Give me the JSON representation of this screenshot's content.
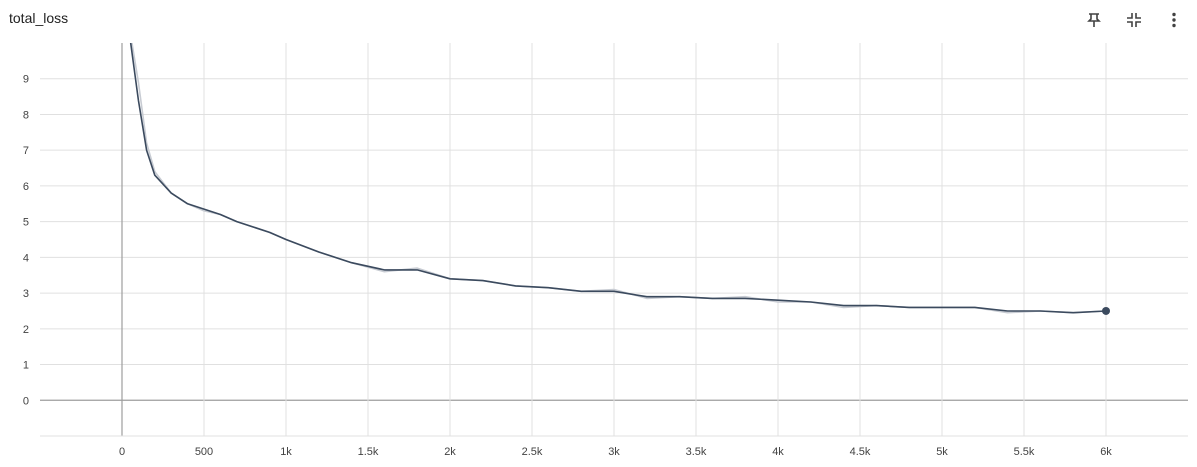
{
  "header": {
    "title": "total_loss"
  },
  "toolbar": {
    "icons": [
      "pin-icon",
      "fit-domain-icon",
      "more-vert-icon"
    ]
  },
  "colors": {
    "smoothed": "#3b4a5e",
    "raw": "#c8ccd3",
    "grid": "#e0e0e0",
    "axis": "#9e9e9e",
    "tick_text": "#424242"
  },
  "chart_data": {
    "type": "line",
    "title": "",
    "xlabel": "",
    "ylabel": "",
    "xlim": [
      -500,
      6500
    ],
    "ylim": [
      -1,
      10
    ],
    "xticks": [
      0,
      500,
      1000,
      1500,
      2000,
      2500,
      3000,
      3500,
      4000,
      4500,
      5000,
      5500,
      6000
    ],
    "xtick_labels": [
      "0",
      "500",
      "1k",
      "1.5k",
      "2k",
      "2.5k",
      "3k",
      "3.5k",
      "4k",
      "4.5k",
      "5k",
      "5.5k",
      "6k"
    ],
    "yticks": [
      0,
      1,
      2,
      3,
      4,
      5,
      6,
      7,
      8,
      9
    ],
    "ytick_labels": [
      "0",
      "1",
      "2",
      "3",
      "4",
      "5",
      "6",
      "7",
      "8",
      "9"
    ],
    "grid": true,
    "series": [
      {
        "role": "raw",
        "x": [
          0,
          50,
          100,
          150,
          200,
          300,
          400,
          500,
          600,
          700,
          800,
          900,
          1000,
          1200,
          1400,
          1600,
          1800,
          2000,
          2200,
          2400,
          2600,
          2800,
          3000,
          3200,
          3400,
          3600,
          3800,
          4000,
          4200,
          4400,
          4600,
          4800,
          5000,
          5200,
          5400,
          5600,
          5800,
          6000
        ],
        "y": [
          10.6,
          10.3,
          8.9,
          7.2,
          6.4,
          5.8,
          5.5,
          5.3,
          5.2,
          5.0,
          4.85,
          4.7,
          4.5,
          4.15,
          3.85,
          3.6,
          3.7,
          3.4,
          3.35,
          3.2,
          3.15,
          3.05,
          3.1,
          2.85,
          2.9,
          2.85,
          2.9,
          2.75,
          2.75,
          2.6,
          2.65,
          2.6,
          2.6,
          2.6,
          2.45,
          2.5,
          2.45,
          2.5
        ]
      },
      {
        "role": "smoothed",
        "x": [
          0,
          50,
          100,
          150,
          200,
          300,
          400,
          500,
          600,
          700,
          800,
          900,
          1000,
          1200,
          1400,
          1600,
          1800,
          2000,
          2200,
          2400,
          2600,
          2800,
          3000,
          3200,
          3400,
          3600,
          3800,
          4000,
          4200,
          4400,
          4600,
          4800,
          5000,
          5200,
          5400,
          5600,
          5800,
          6000
        ],
        "y": [
          10.2,
          10.1,
          8.4,
          7.0,
          6.3,
          5.8,
          5.5,
          5.35,
          5.2,
          5.0,
          4.85,
          4.7,
          4.5,
          4.15,
          3.85,
          3.65,
          3.65,
          3.4,
          3.35,
          3.2,
          3.15,
          3.05,
          3.05,
          2.9,
          2.9,
          2.85,
          2.85,
          2.8,
          2.75,
          2.65,
          2.65,
          2.6,
          2.6,
          2.6,
          2.5,
          2.5,
          2.45,
          2.5
        ]
      }
    ]
  }
}
